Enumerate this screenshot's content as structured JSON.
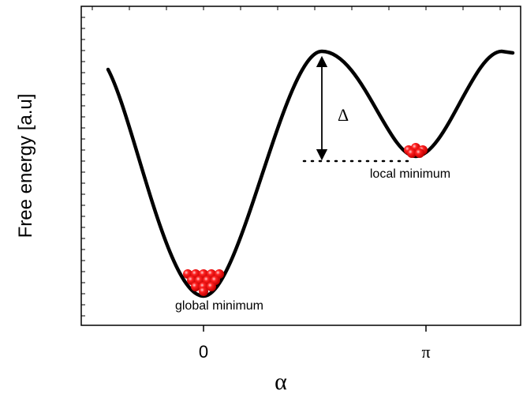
{
  "axes": {
    "y_label": "Free energy [a.u]",
    "x_label": "α",
    "x_ticks": [
      "0",
      "π"
    ]
  },
  "annotations": {
    "barrier": "Δ",
    "local": "local minimum",
    "global": "global minimum"
  }
}
